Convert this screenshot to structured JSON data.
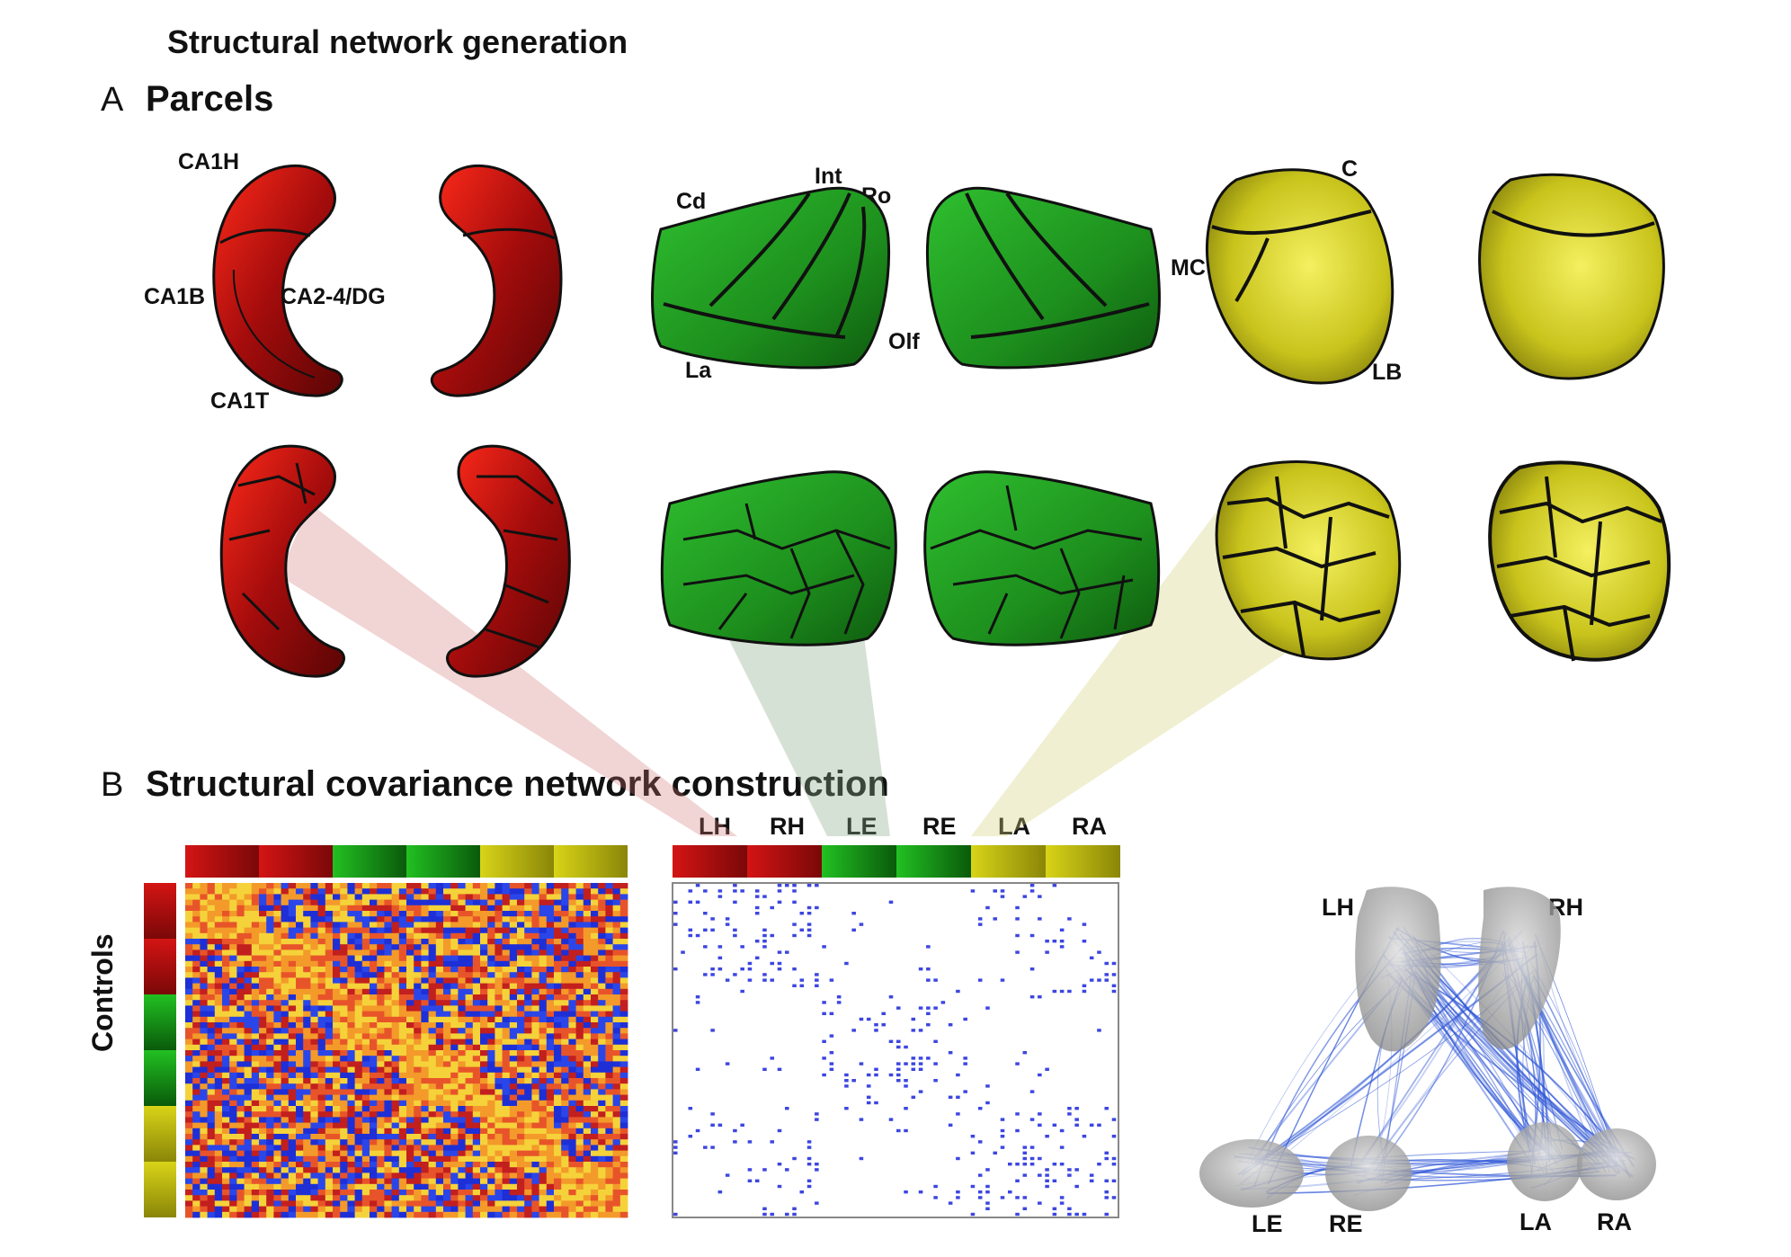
{
  "title": "Structural network generation",
  "section_a": {
    "letter": "A",
    "title": "Parcels"
  },
  "section_b": {
    "letter": "B",
    "title": "Structural covariance network construction"
  },
  "hippocampus_labels": [
    "CA1H",
    "CA1B",
    "CA2-4/DG",
    "CA1T"
  ],
  "amygdala_labels": [
    "Cd",
    "Int",
    "Ro",
    "Olf",
    "La"
  ],
  "thalamus_labels": [
    "C",
    "MC",
    "LB"
  ],
  "matrix_groups": [
    "LH",
    "RH",
    "LE",
    "RE",
    "LA",
    "RA"
  ],
  "row_label": "Controls",
  "network_nodes": [
    "LH",
    "RH",
    "LE",
    "RE",
    "LA",
    "RA"
  ],
  "colors": {
    "red": "#b00a0a",
    "green": "#1f9a1f",
    "yellow": "#c8c41a",
    "edge": "#2d55d6"
  }
}
